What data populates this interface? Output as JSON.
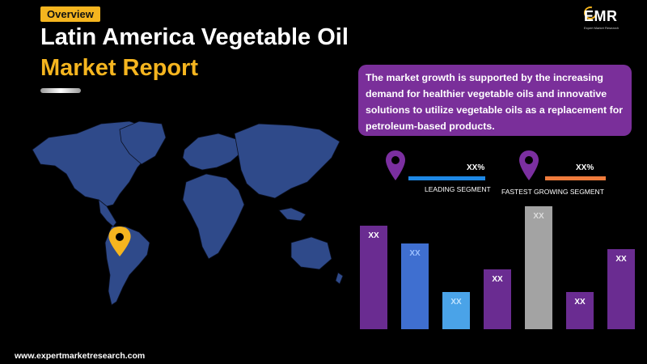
{
  "header": {
    "badge": "Overview",
    "title_line1": "Latin America Vegetable Oil",
    "title_line2": "Market Report"
  },
  "logo": {
    "mark": "EMR",
    "tagline": "Expert Market Research"
  },
  "callout": {
    "text": "The market growth is supported by the increasing demand for healthier vegetable oils and innovative solutions to utilize vegetable oils as a replacement for petroleum-based products."
  },
  "segments": [
    {
      "value": "XX%",
      "label": "LEADING SEGMENT",
      "line_color": "#1e88e5",
      "pin_color": "#7b2fa0"
    },
    {
      "value": "XX%",
      "label": "FASTEST GROWING SEGMENT",
      "line_color": "#f07c3c",
      "pin_color": "#7b2fa0"
    }
  ],
  "chart_data": {
    "type": "bar",
    "categories": [
      "",
      "",
      "",
      "",
      "",
      "",
      ""
    ],
    "values": [
      0.84,
      0.7,
      0.3,
      0.49,
      1.0,
      0.3,
      0.65
    ],
    "data_labels": [
      "XX",
      "XX",
      "XX",
      "XX",
      "XX",
      "XX",
      "XX"
    ],
    "colors": [
      "#6a2c91",
      "#3f6fd0",
      "#4aa3e8",
      "#6a2c91",
      "#a3a3a3",
      "#6a2c91",
      "#6a2c91"
    ],
    "label_colors": [
      "#ffffff",
      "#9cc0ff",
      "#bfe3ff",
      "#ffffff",
      "#dddddd",
      "#ffffff",
      "#ffffff"
    ]
  },
  "map": {
    "highlight": "Latin America",
    "marker_color": "#f5b51f",
    "land_color": "#2f4a8a"
  },
  "footer": {
    "url": "www.expertmarketresearch.com"
  }
}
